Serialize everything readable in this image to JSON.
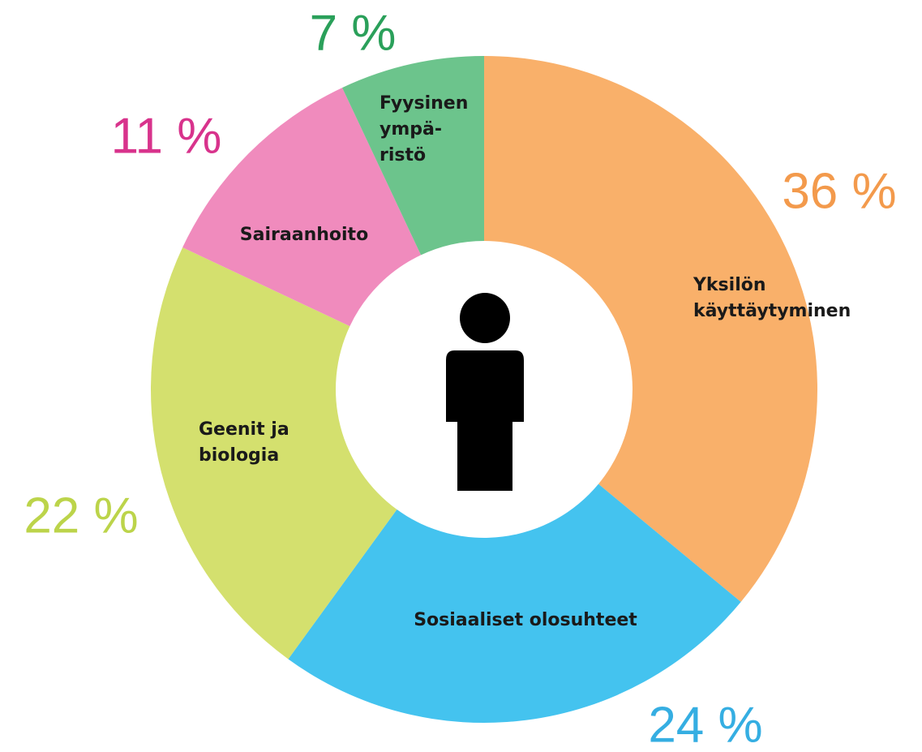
{
  "chart_data": {
    "type": "donut",
    "categories": [
      [
        "Yksilön",
        "käyttäytyminen"
      ],
      [
        "Sosiaaliset olosuhteet"
      ],
      [
        "Geenit ja",
        "biologia"
      ],
      [
        "Sairaanhoito"
      ],
      [
        "Fyysinen",
        "ympä-",
        "ristö"
      ]
    ],
    "values": [
      36,
      24,
      22,
      11,
      7
    ],
    "value_labels": [
      "36 %",
      "24 %",
      "22 %",
      "11 %",
      "7 %"
    ],
    "colors": [
      "#f9b06a",
      "#44c3ef",
      "#d4e06e",
      "#f08bbd",
      "#6cc48c"
    ],
    "value_label_colors": [
      "#f39a4c",
      "#35aee2",
      "#bcd44a",
      "#d8338c",
      "#2aa05a"
    ]
  }
}
